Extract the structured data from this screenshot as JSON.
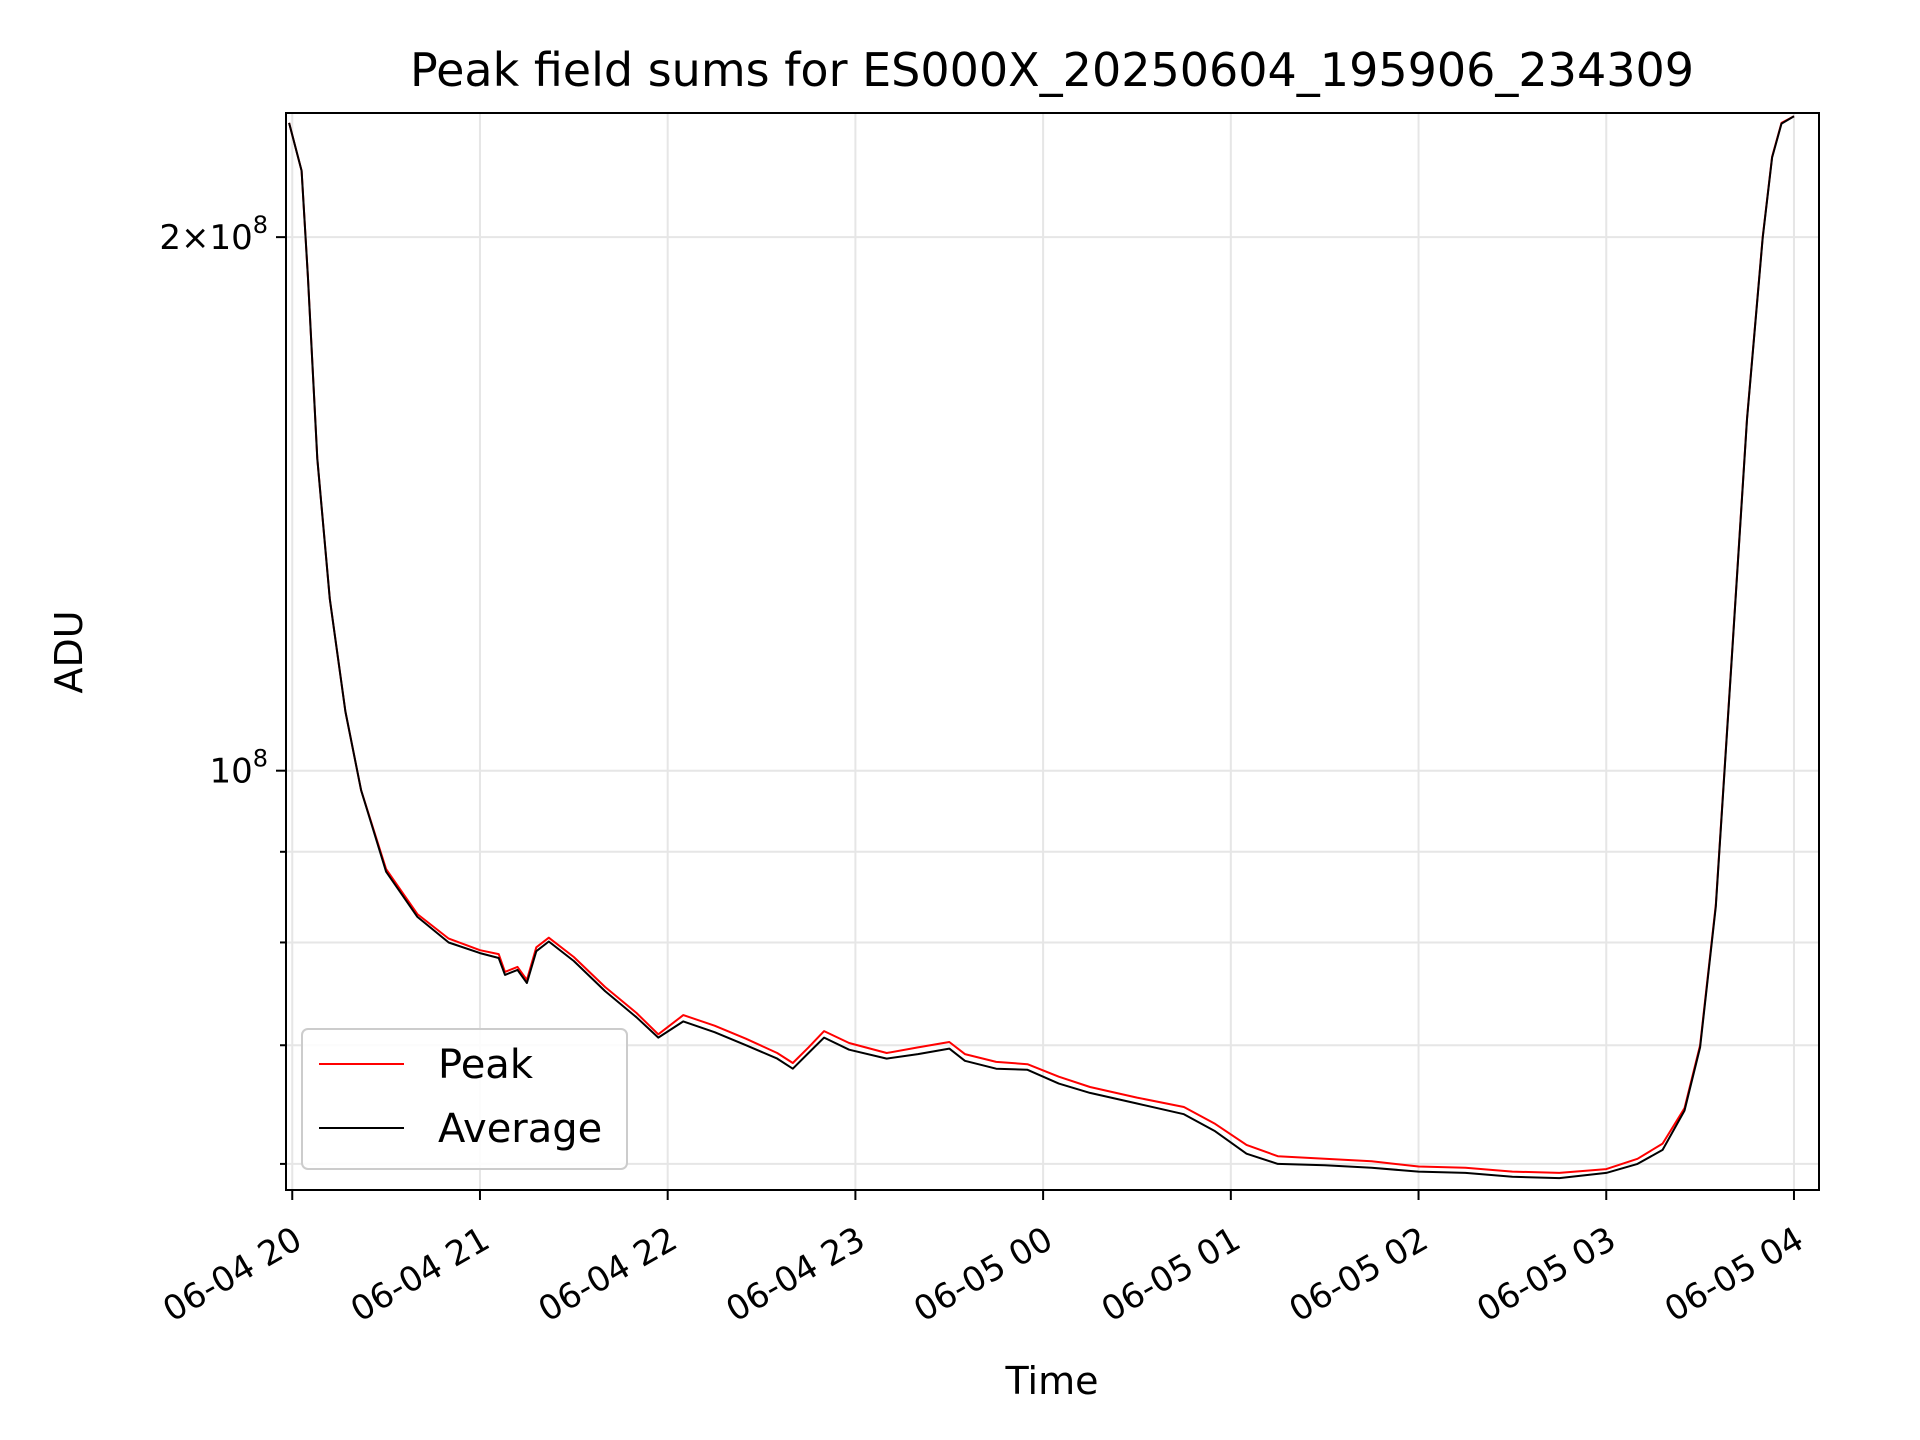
{
  "chart_data": {
    "type": "line",
    "title": "Peak field sums for ES000X_20250604_195906_234309",
    "xlabel": "Time",
    "ylabel": "ADU",
    "yscale": "log",
    "ylim": [
      58000000,
      235000000
    ],
    "xlim": [
      "2025-06-04 19:58",
      "2025-06-05 04:08"
    ],
    "grid": true,
    "legend_position": "lower-left",
    "colors": {
      "Peak": "#ff0000",
      "Average": "#000000"
    },
    "x_ticks": [
      {
        "t": "2025-06-04 20:00",
        "label": "06-04 20"
      },
      {
        "t": "2025-06-04 21:00",
        "label": "06-04 21"
      },
      {
        "t": "2025-06-04 22:00",
        "label": "06-04 22"
      },
      {
        "t": "2025-06-04 23:00",
        "label": "06-04 23"
      },
      {
        "t": "2025-06-05 00:00",
        "label": "06-05 00"
      },
      {
        "t": "2025-06-05 01:00",
        "label": "06-05 01"
      },
      {
        "t": "2025-06-05 02:00",
        "label": "06-05 02"
      },
      {
        "t": "2025-06-05 03:00",
        "label": "06-05 03"
      },
      {
        "t": "2025-06-05 04:00",
        "label": "06-05 04"
      }
    ],
    "y_major_ticks": [
      {
        "value": 100000000,
        "base": "10",
        "exp": "8"
      },
      {
        "value": 200000000,
        "mant": "2",
        "base": "10",
        "exp": "8"
      }
    ],
    "y_minor_ticks": [
      60000000,
      70000000,
      80000000,
      90000000
    ],
    "series": [
      {
        "name": "Peak",
        "points": [
          [
            "2025-06-04 19:59",
            232000000
          ],
          [
            "2025-06-04 20:03",
            218000000
          ],
          [
            "2025-06-04 20:05",
            190000000
          ],
          [
            "2025-06-04 20:08",
            150000000
          ],
          [
            "2025-06-04 20:12",
            125000000
          ],
          [
            "2025-06-04 20:17",
            108000000
          ],
          [
            "2025-06-04 20:22",
            97500000
          ],
          [
            "2025-06-04 20:30",
            88000000
          ],
          [
            "2025-06-04 20:40",
            83000000
          ],
          [
            "2025-06-04 20:50",
            80400000
          ],
          [
            "2025-06-04 21:00",
            79200000
          ],
          [
            "2025-06-04 21:06",
            78800000
          ],
          [
            "2025-06-04 21:08",
            77000000
          ],
          [
            "2025-06-04 21:12",
            77500000
          ],
          [
            "2025-06-04 21:15",
            76200000
          ],
          [
            "2025-06-04 21:18",
            79500000
          ],
          [
            "2025-06-04 21:22",
            80500000
          ],
          [
            "2025-06-04 21:30",
            78500000
          ],
          [
            "2025-06-04 21:40",
            75500000
          ],
          [
            "2025-06-04 21:50",
            73000000
          ],
          [
            "2025-06-04 21:57",
            71000000
          ],
          [
            "2025-06-04 22:05",
            72800000
          ],
          [
            "2025-06-04 22:15",
            71800000
          ],
          [
            "2025-06-04 22:25",
            70600000
          ],
          [
            "2025-06-04 22:35",
            69300000
          ],
          [
            "2025-06-04 22:40",
            68400000
          ],
          [
            "2025-06-04 22:45",
            69800000
          ],
          [
            "2025-06-04 22:50",
            71300000
          ],
          [
            "2025-06-04 22:58",
            70200000
          ],
          [
            "2025-06-04 23:10",
            69300000
          ],
          [
            "2025-06-04 23:20",
            69800000
          ],
          [
            "2025-06-04 23:30",
            70300000
          ],
          [
            "2025-06-04 23:35",
            69200000
          ],
          [
            "2025-06-04 23:45",
            68500000
          ],
          [
            "2025-06-04 23:55",
            68300000
          ],
          [
            "2025-06-05 00:05",
            67200000
          ],
          [
            "2025-06-05 00:15",
            66300000
          ],
          [
            "2025-06-05 00:30",
            65400000
          ],
          [
            "2025-06-05 00:45",
            64600000
          ],
          [
            "2025-06-05 00:55",
            63200000
          ],
          [
            "2025-06-05 01:05",
            61500000
          ],
          [
            "2025-06-05 01:15",
            60600000
          ],
          [
            "2025-06-05 01:30",
            60400000
          ],
          [
            "2025-06-05 01:45",
            60200000
          ],
          [
            "2025-06-05 02:00",
            59800000
          ],
          [
            "2025-06-05 02:15",
            59700000
          ],
          [
            "2025-06-05 02:30",
            59400000
          ],
          [
            "2025-06-05 02:45",
            59300000
          ],
          [
            "2025-06-05 03:00",
            59600000
          ],
          [
            "2025-06-05 03:10",
            60400000
          ],
          [
            "2025-06-05 03:18",
            61600000
          ],
          [
            "2025-06-05 03:25",
            64500000
          ],
          [
            "2025-06-05 03:30",
            70000000
          ],
          [
            "2025-06-05 03:35",
            84000000
          ],
          [
            "2025-06-05 03:40",
            115000000
          ],
          [
            "2025-06-05 03:45",
            158000000
          ],
          [
            "2025-06-05 03:50",
            200000000
          ],
          [
            "2025-06-05 03:53",
            222000000
          ],
          [
            "2025-06-05 03:56",
            232000000
          ],
          [
            "2025-06-05 04:00",
            234000000
          ]
        ]
      },
      {
        "name": "Average",
        "points": [
          [
            "2025-06-04 19:59",
            232000000
          ],
          [
            "2025-06-04 20:03",
            218000000
          ],
          [
            "2025-06-04 20:05",
            190000000
          ],
          [
            "2025-06-04 20:08",
            150000000
          ],
          [
            "2025-06-04 20:12",
            125000000
          ],
          [
            "2025-06-04 20:17",
            108000000
          ],
          [
            "2025-06-04 20:22",
            97500000
          ],
          [
            "2025-06-04 20:30",
            87700000
          ],
          [
            "2025-06-04 20:40",
            82700000
          ],
          [
            "2025-06-04 20:50",
            80000000
          ],
          [
            "2025-06-04 21:00",
            78900000
          ],
          [
            "2025-06-04 21:06",
            78400000
          ],
          [
            "2025-06-04 21:08",
            76700000
          ],
          [
            "2025-06-04 21:12",
            77200000
          ],
          [
            "2025-06-04 21:15",
            75900000
          ],
          [
            "2025-06-04 21:18",
            79100000
          ],
          [
            "2025-06-04 21:22",
            80100000
          ],
          [
            "2025-06-04 21:30",
            78100000
          ],
          [
            "2025-06-04 21:40",
            75100000
          ],
          [
            "2025-06-04 21:50",
            72600000
          ],
          [
            "2025-06-04 21:57",
            70700000
          ],
          [
            "2025-06-04 22:05",
            72200000
          ],
          [
            "2025-06-04 22:15",
            71200000
          ],
          [
            "2025-06-04 22:25",
            70000000
          ],
          [
            "2025-06-04 22:35",
            68800000
          ],
          [
            "2025-06-04 22:40",
            67900000
          ],
          [
            "2025-06-04 22:45",
            69300000
          ],
          [
            "2025-06-04 22:50",
            70700000
          ],
          [
            "2025-06-04 22:58",
            69600000
          ],
          [
            "2025-06-04 23:10",
            68800000
          ],
          [
            "2025-06-04 23:20",
            69200000
          ],
          [
            "2025-06-04 23:30",
            69700000
          ],
          [
            "2025-06-04 23:35",
            68600000
          ],
          [
            "2025-06-04 23:45",
            67900000
          ],
          [
            "2025-06-04 23:55",
            67800000
          ],
          [
            "2025-06-05 00:05",
            66600000
          ],
          [
            "2025-06-05 00:15",
            65800000
          ],
          [
            "2025-06-05 00:30",
            64900000
          ],
          [
            "2025-06-05 00:45",
            64000000
          ],
          [
            "2025-06-05 00:55",
            62600000
          ],
          [
            "2025-06-05 01:05",
            60800000
          ],
          [
            "2025-06-05 01:15",
            60000000
          ],
          [
            "2025-06-05 01:30",
            59900000
          ],
          [
            "2025-06-05 01:45",
            59700000
          ],
          [
            "2025-06-05 02:00",
            59400000
          ],
          [
            "2025-06-05 02:15",
            59300000
          ],
          [
            "2025-06-05 02:30",
            59000000
          ],
          [
            "2025-06-05 02:45",
            58900000
          ],
          [
            "2025-06-05 03:00",
            59300000
          ],
          [
            "2025-06-05 03:10",
            60000000
          ],
          [
            "2025-06-05 03:18",
            61100000
          ],
          [
            "2025-06-05 03:25",
            64300000
          ],
          [
            "2025-06-05 03:30",
            69800000
          ],
          [
            "2025-06-05 03:35",
            83800000
          ],
          [
            "2025-06-05 03:40",
            114800000
          ],
          [
            "2025-06-05 03:45",
            157800000
          ],
          [
            "2025-06-05 03:50",
            199800000
          ],
          [
            "2025-06-05 03:53",
            221800000
          ],
          [
            "2025-06-05 03:56",
            231800000
          ],
          [
            "2025-06-05 04:00",
            234000000
          ]
        ]
      }
    ]
  },
  "legend": [
    {
      "label": "Peak",
      "color": "#ff0000"
    },
    {
      "label": "Average",
      "color": "#000000"
    }
  ]
}
